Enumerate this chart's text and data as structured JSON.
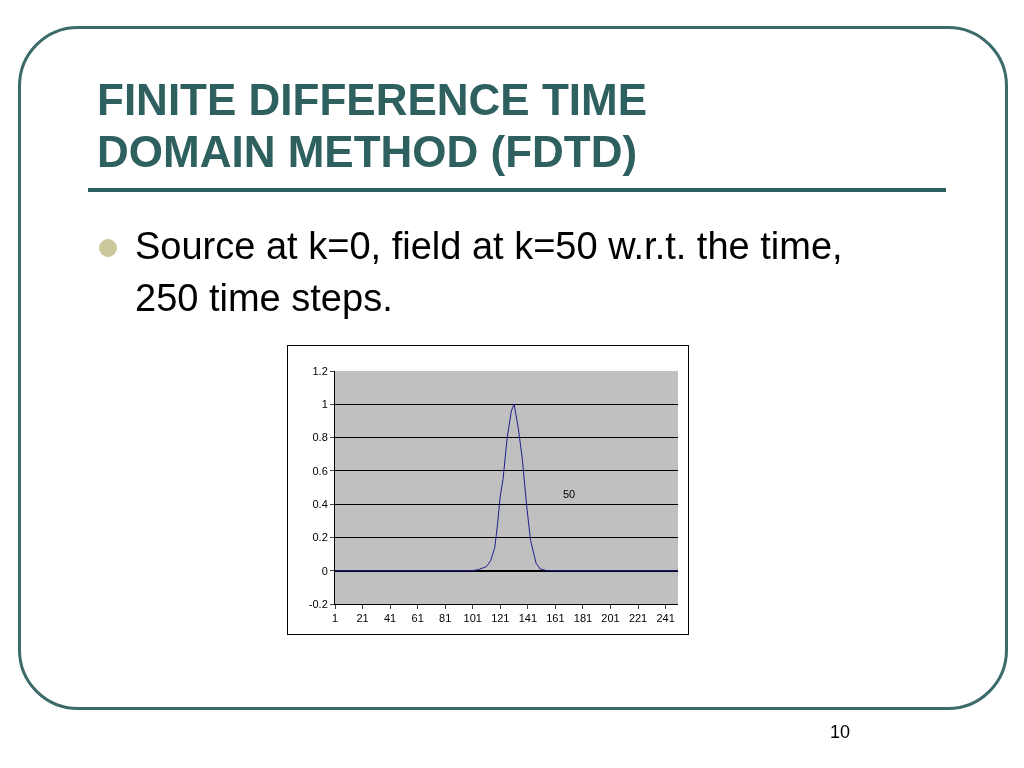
{
  "chart_data": {
    "type": "line",
    "title": "FINITE DIFFERENCE TIME DOMAIN METHOD (FDTD)",
    "subtitle": "Source at k=0, field at k=50 w.r.t. the time, 250 time steps.",
    "annotations": [
      "10"
    ],
    "series": [
      {
        "name": "50",
        "color": "#1f1f8f",
        "x": [
          1,
          100,
          105,
          111,
          114,
          117,
          119,
          121,
          123,
          126,
          129,
          131,
          134,
          137,
          140,
          143,
          147,
          150,
          155,
          250
        ],
        "values": [
          0,
          0,
          0.006,
          0.025,
          0.06,
          0.14,
          0.28,
          0.45,
          0.55,
          0.8,
          0.96,
          1.0,
          0.86,
          0.67,
          0.4,
          0.18,
          0.045,
          0.01,
          0,
          0
        ]
      }
    ],
    "xlim": [
      1,
      250
    ],
    "xticks": [
      1,
      21,
      41,
      61,
      81,
      101,
      121,
      141,
      161,
      181,
      201,
      221,
      241
    ],
    "ylim": [
      -0.2,
      1.2
    ],
    "yticks": [
      -0.2,
      0,
      0.2,
      0.4,
      0.6,
      0.8,
      1,
      1.2
    ],
    "grid": "y",
    "legend": false,
    "marker": "none",
    "line_style": "solid"
  }
}
